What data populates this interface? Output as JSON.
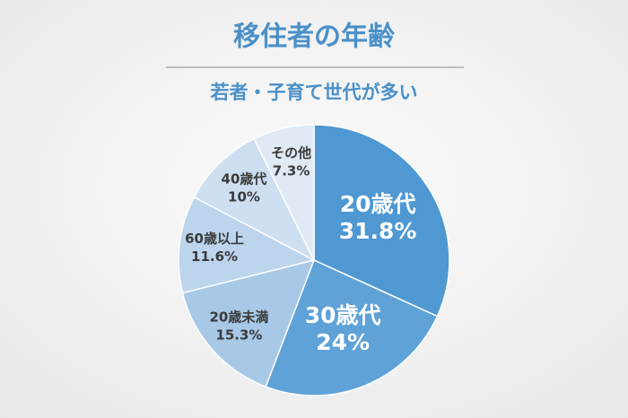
{
  "chart_data": {
    "type": "pie",
    "title": "移住者の年齢",
    "subtitle": "若者・子育て世代が多い",
    "categories": [
      "20歳代",
      "30歳代",
      "20歳未満",
      "60歳以上",
      "40歳代",
      "その他"
    ],
    "values": [
      31.8,
      24,
      15.3,
      11.6,
      10,
      7.3
    ],
    "value_labels": [
      "31.8%",
      "24%",
      "15.3%",
      "11.6%",
      "10%",
      "7.3%"
    ],
    "colors": [
      "#4f98d2",
      "#5ea2d8",
      "#a8c8e7",
      "#bcd5ed",
      "#cddff1",
      "#dfeaf5"
    ]
  }
}
